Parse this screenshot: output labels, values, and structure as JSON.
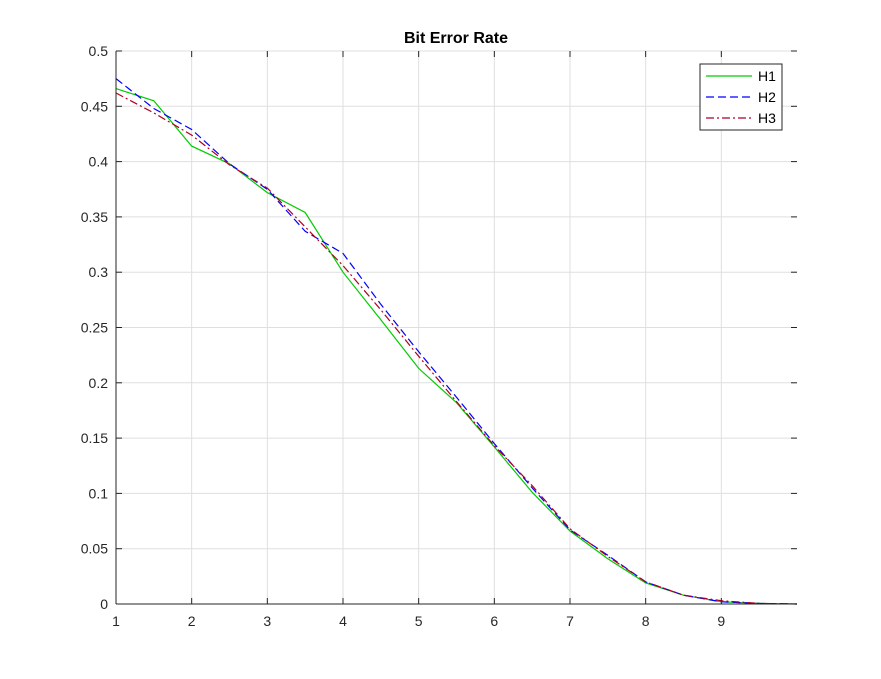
{
  "chart_data": {
    "type": "line",
    "title": "Bit Error Rate",
    "xlabel": "",
    "ylabel": "",
    "xlim": [
      1,
      10
    ],
    "ylim": [
      0,
      0.5
    ],
    "xticks": [
      "1",
      "2",
      "3",
      "4",
      "5",
      "6",
      "7",
      "8",
      "9"
    ],
    "yticks": [
      "0",
      "0.05",
      "0.1",
      "0.15",
      "0.2",
      "0.25",
      "0.3",
      "0.35",
      "0.4",
      "0.45",
      "0.5"
    ],
    "grid": true,
    "legend_position": "top-right",
    "x": [
      1,
      1.5,
      2,
      2.5,
      3,
      3.5,
      4,
      4.5,
      5,
      5.5,
      6,
      6.5,
      7,
      7.5,
      8,
      8.5,
      9,
      9.5,
      10
    ],
    "series": [
      {
        "name": "H1",
        "color": "#00cc00",
        "dash": "solid",
        "values": [
          0.466,
          0.455,
          0.414,
          0.398,
          0.372,
          0.354,
          0.3,
          0.257,
          0.213,
          0.182,
          0.142,
          0.101,
          0.066,
          0.041,
          0.019,
          0.008,
          0.002,
          0.0005,
          0.0
        ]
      },
      {
        "name": "H2",
        "color": "#0000ff",
        "dash": "dashed",
        "values": [
          0.475,
          0.448,
          0.429,
          0.398,
          0.375,
          0.337,
          0.317,
          0.271,
          0.228,
          0.187,
          0.145,
          0.105,
          0.067,
          0.044,
          0.02,
          0.008,
          0.002,
          0.0005,
          0.0
        ]
      },
      {
        "name": "H3",
        "color": "#b00020",
        "dash": "dashdot",
        "values": [
          0.462,
          0.444,
          0.424,
          0.397,
          0.376,
          0.341,
          0.306,
          0.266,
          0.224,
          0.183,
          0.143,
          0.107,
          0.068,
          0.043,
          0.02,
          0.008,
          0.003,
          0.0005,
          0.0
        ]
      }
    ]
  }
}
